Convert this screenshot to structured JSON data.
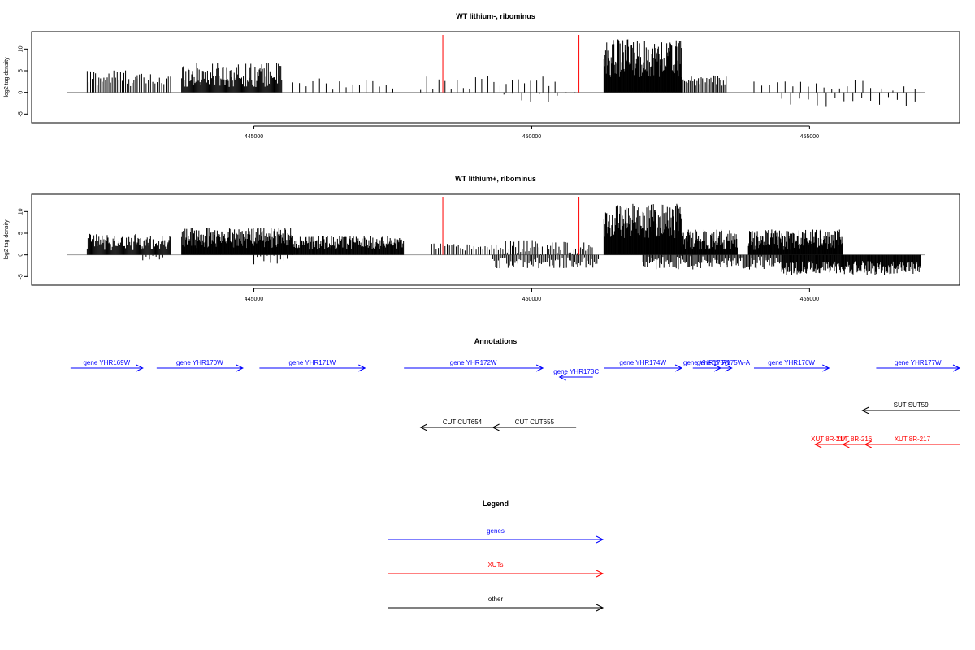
{
  "chart_data": [
    {
      "type": "bar",
      "title": "WT lithium-, ribominus",
      "ylabel": "log2 tag density",
      "xlim": [
        441000,
        457700
      ],
      "ylim": [
        -7,
        14
      ],
      "yticks": [
        -5,
        0,
        5,
        10
      ],
      "xticks": [
        445000,
        450000,
        455000
      ],
      "xtick_labels": [
        "445000",
        "450000",
        "455000"
      ],
      "markers": [
        448400,
        450850
      ],
      "marker_color": "#ff0000",
      "bar_color": "#000000",
      "regions": [
        {
          "x": [
            442000,
            442900
          ],
          "base": 3.0,
          "amp": 2.6,
          "step": 30
        },
        {
          "x": [
            442900,
            443500
          ],
          "base": 2.5,
          "amp": 2.0,
          "step": 40
        },
        {
          "x": [
            443700,
            445500
          ],
          "base": 3.5,
          "amp": 3.5,
          "step": 15
        },
        {
          "x": [
            445700,
            447500
          ],
          "base": 1.5,
          "amp": 2.0,
          "step": 120
        },
        {
          "x": [
            448000,
            450500
          ],
          "base": 1.8,
          "amp": 2.0,
          "step": 110
        },
        {
          "x": [
            451300,
            452700
          ],
          "base": 7.0,
          "amp": 5.5,
          "step": 10
        },
        {
          "x": [
            452700,
            453500
          ],
          "base": 2.5,
          "amp": 1.5,
          "step": 25
        },
        {
          "x": [
            454000,
            456000
          ],
          "base": 1.5,
          "amp": 1.5,
          "step": 140
        },
        {
          "x": [
            456100,
            457000
          ],
          "base": 1.0,
          "amp": 1.0,
          "step": 200
        }
      ],
      "neg_regions": [
        {
          "x": [
            449500,
            450800
          ],
          "base": -1.0,
          "amp": 1.5,
          "step": 160
        },
        {
          "x": [
            454500,
            457000
          ],
          "base": -2.0,
          "amp": 1.8,
          "step": 160
        }
      ]
    },
    {
      "type": "bar",
      "title": "WT lithium+, ribominus",
      "ylabel": "log2 tag density",
      "xlim": [
        441000,
        457700
      ],
      "ylim": [
        -7,
        14
      ],
      "yticks": [
        -5,
        0,
        5,
        10
      ],
      "xticks": [
        445000,
        450000,
        455000
      ],
      "xtick_labels": [
        "445000",
        "450000",
        "455000"
      ],
      "markers": [
        448400,
        450850
      ],
      "marker_color": "#ff0000",
      "bar_color": "#000000",
      "regions": [
        {
          "x": [
            442000,
            443500
          ],
          "base": 2.5,
          "amp": 2.5,
          "step": 15
        },
        {
          "x": [
            443700,
            445700
          ],
          "base": 3.5,
          "amp": 3.0,
          "step": 10
        },
        {
          "x": [
            445700,
            447700
          ],
          "base": 2.5,
          "amp": 2.0,
          "step": 12
        },
        {
          "x": [
            448200,
            449500
          ],
          "base": 1.5,
          "amp": 1.2,
          "step": 40
        },
        {
          "x": [
            449500,
            451100
          ],
          "base": 1.5,
          "amp": 2.0,
          "step": 30
        },
        {
          "x": [
            451300,
            452700
          ],
          "base": 7.0,
          "amp": 5.0,
          "step": 10
        },
        {
          "x": [
            452700,
            453700
          ],
          "base": 3.0,
          "amp": 3.0,
          "step": 10
        },
        {
          "x": [
            453900,
            455600
          ],
          "base": 3.0,
          "amp": 3.0,
          "step": 10
        }
      ],
      "neg_regions": [
        {
          "x": [
            443000,
            443400
          ],
          "base": -0.8,
          "amp": 0.8,
          "step": 60
        },
        {
          "x": [
            445000,
            445600
          ],
          "base": -1.0,
          "amp": 1.5,
          "step": 60
        },
        {
          "x": [
            449300,
            451200
          ],
          "base": -1.8,
          "amp": 1.6,
          "step": 25
        },
        {
          "x": [
            452000,
            454500
          ],
          "base": -1.8,
          "amp": 2.0,
          "step": 20
        },
        {
          "x": [
            454500,
            457000
          ],
          "base": -3.0,
          "amp": 2.0,
          "step": 12
        }
      ]
    }
  ],
  "annotations": {
    "title": "Annotations",
    "x_range": [
      441000,
      457700
    ],
    "features": [
      {
        "label": "gene YHR169W",
        "start": 441700,
        "end": 443000,
        "strand": "+",
        "row": 0,
        "color": "#0000ff"
      },
      {
        "label": "gene YHR170W",
        "start": 443250,
        "end": 444800,
        "strand": "+",
        "row": 0,
        "color": "#0000ff"
      },
      {
        "label": "gene YHR171W",
        "start": 445100,
        "end": 447000,
        "strand": "+",
        "row": 0,
        "color": "#0000ff"
      },
      {
        "label": "gene YHR172W",
        "start": 447700,
        "end": 450200,
        "strand": "+",
        "row": 0,
        "color": "#0000ff"
      },
      {
        "label": "gene YHR173C",
        "start": 450500,
        "end": 451100,
        "strand": "-",
        "row": 1,
        "color": "#0000ff"
      },
      {
        "label": "gene YHR174W",
        "start": 451300,
        "end": 452700,
        "strand": "+",
        "row": 0,
        "color": "#0000ff"
      },
      {
        "label": "gene YHR175W",
        "start": 452900,
        "end": 453400,
        "strand": "+",
        "row": 0,
        "color": "#0000ff"
      },
      {
        "label": "gene YHR175W-A",
        "start": 453300,
        "end": 453600,
        "strand": "+",
        "row": 0,
        "color": "#0000ff"
      },
      {
        "label": "gene YHR176W",
        "start": 454000,
        "end": 455350,
        "strand": "+",
        "row": 0,
        "color": "#0000ff"
      },
      {
        "label": "gene YHR177W",
        "start": 456200,
        "end": 457700,
        "strand": "+",
        "row": 0,
        "color": "#0000ff"
      },
      {
        "label": "SUT SUT59",
        "start": 455950,
        "end": 457700,
        "strand": "-",
        "row": 2,
        "color": "#000000"
      },
      {
        "label": "CUT CUT654",
        "start": 448000,
        "end": 449500,
        "strand": "-",
        "row": 3,
        "color": "#000000"
      },
      {
        "label": "CUT CUT655",
        "start": 449300,
        "end": 450800,
        "strand": "-",
        "row": 3,
        "color": "#000000"
      },
      {
        "label": "XUT 8R-214",
        "start": 455100,
        "end": 455600,
        "strand": "-",
        "row": 4,
        "color": "#ff0000"
      },
      {
        "label": "XUT 8R-216",
        "start": 455600,
        "end": 456000,
        "strand": "-",
        "row": 4,
        "color": "#ff0000"
      },
      {
        "label": "XUT 8R-217",
        "start": 456000,
        "end": 457700,
        "strand": "-",
        "row": 4,
        "color": "#ff0000"
      }
    ]
  },
  "legend": {
    "title": "Legend",
    "items": [
      {
        "label": "genes",
        "color": "#0000ff"
      },
      {
        "label": "XUTs",
        "color": "#ff0000"
      },
      {
        "label": "other",
        "color": "#000000"
      }
    ]
  }
}
